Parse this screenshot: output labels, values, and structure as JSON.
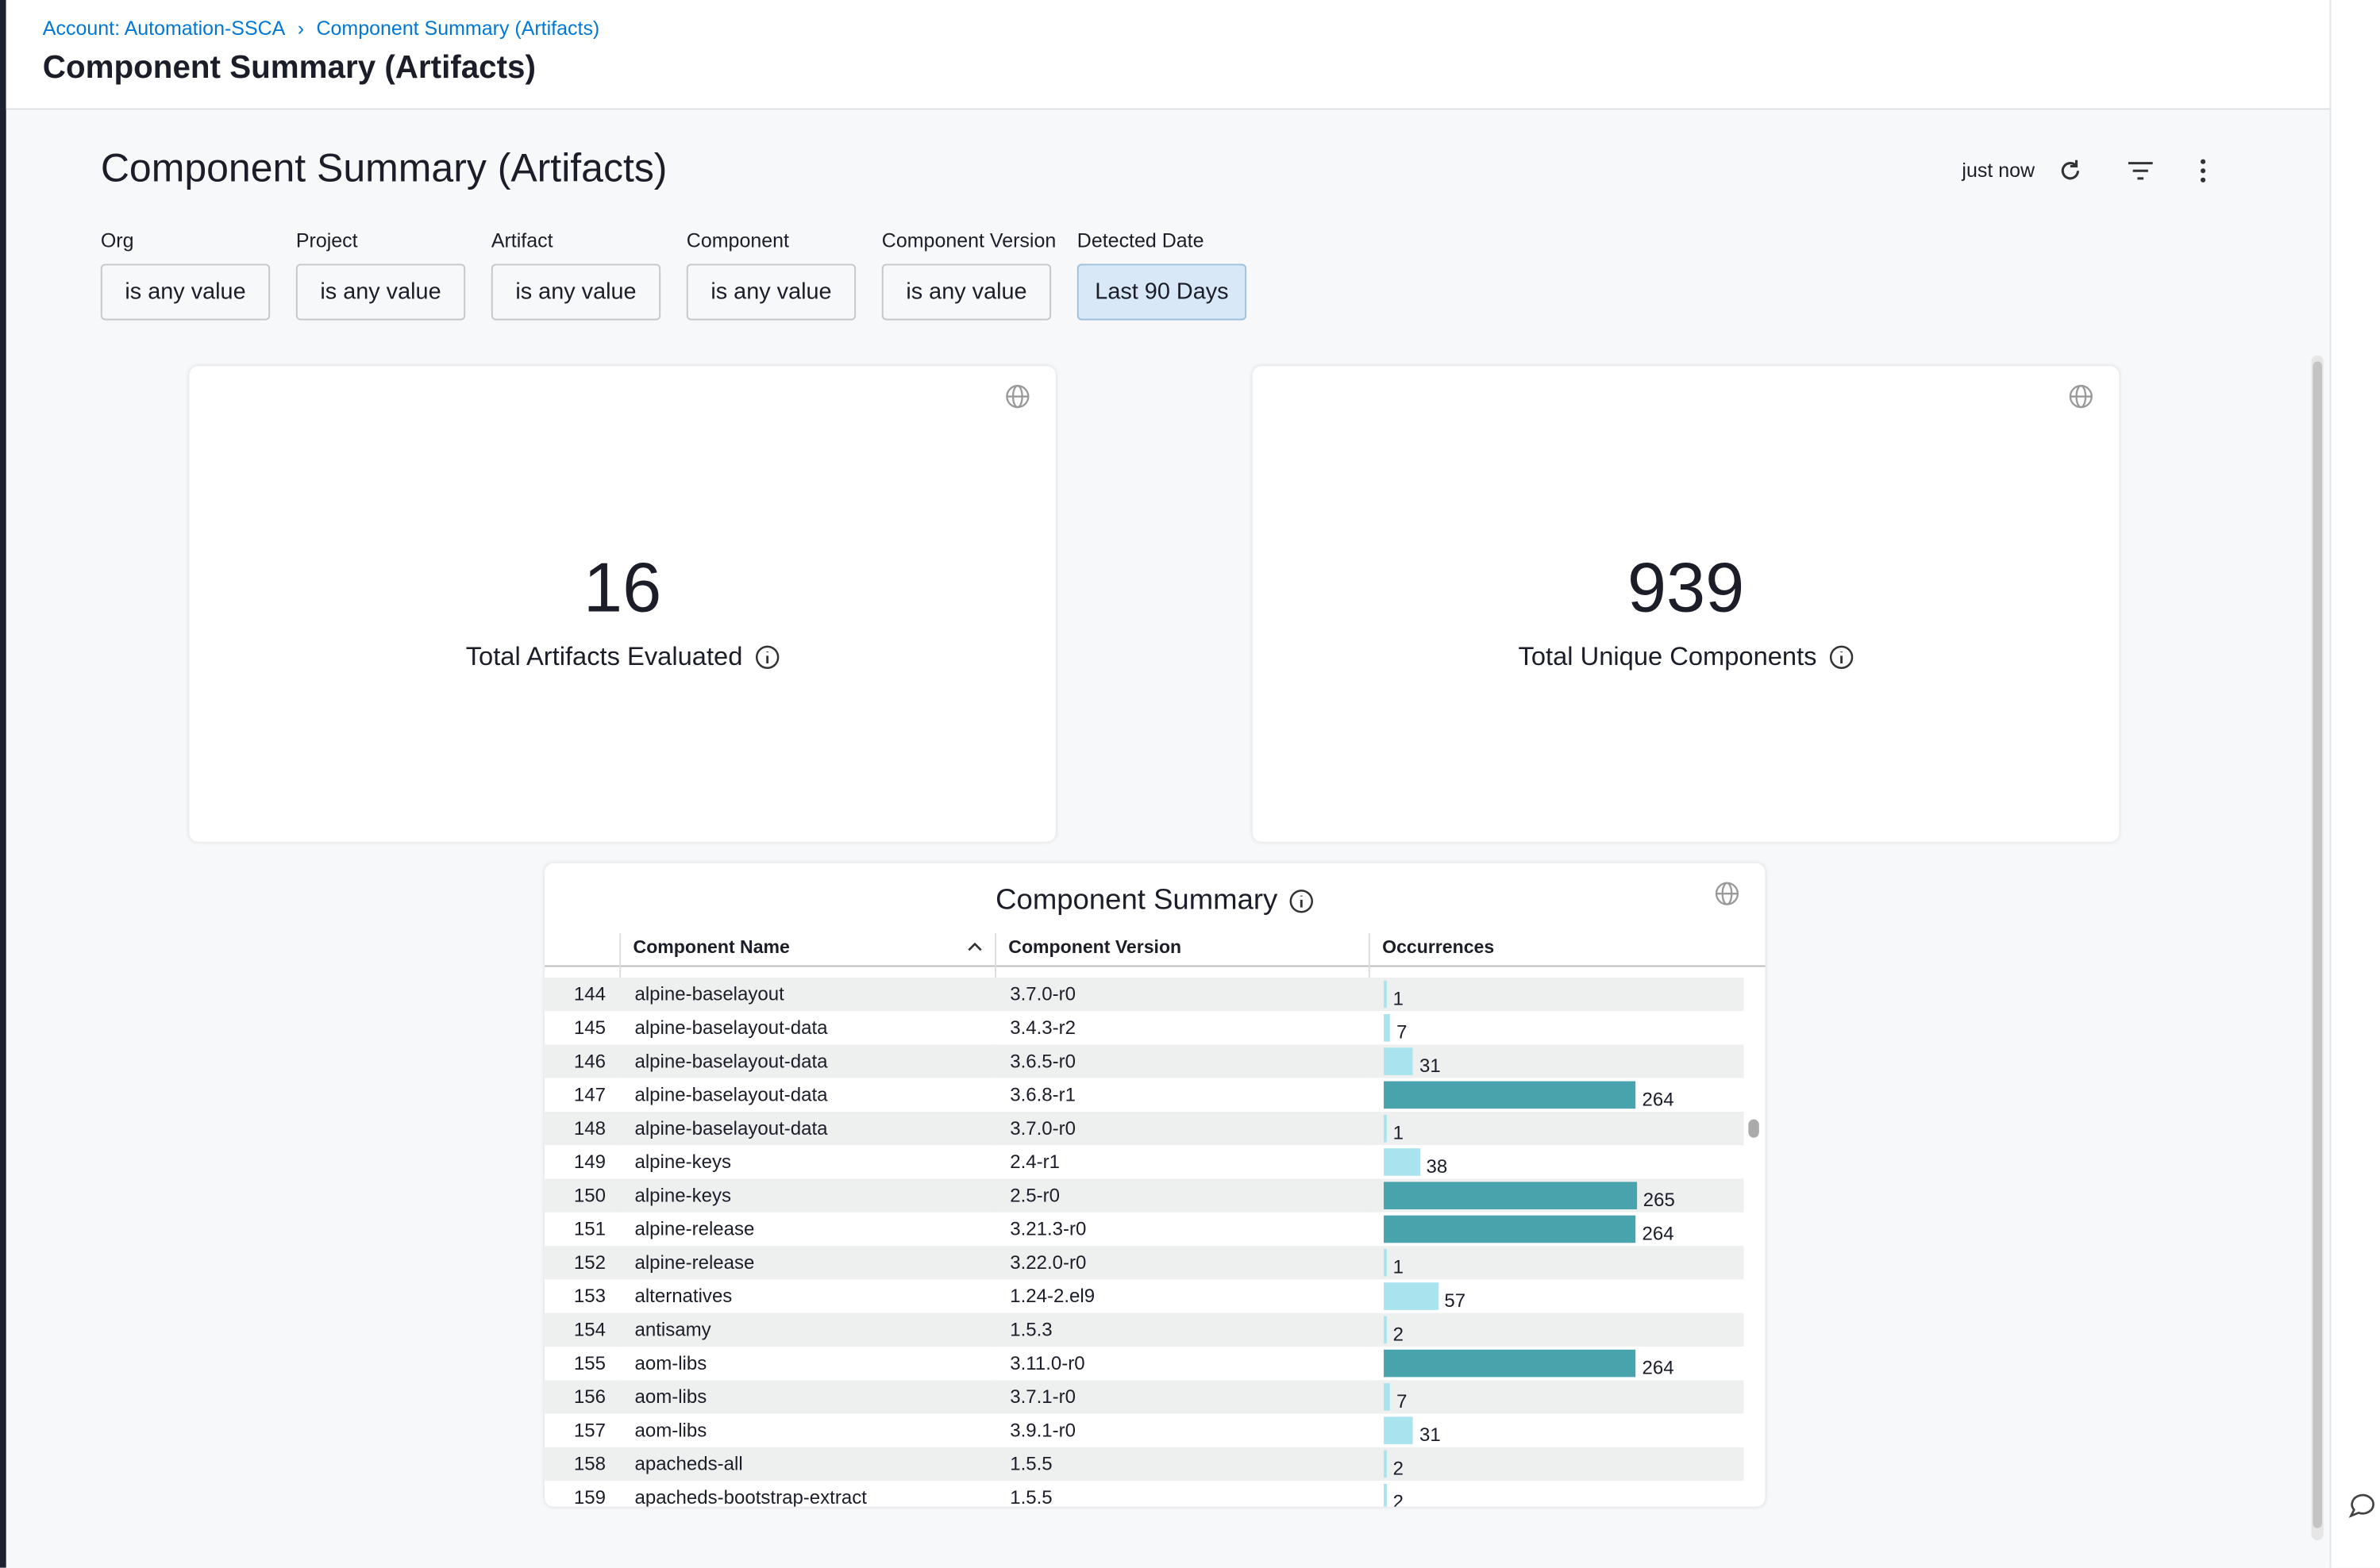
{
  "breadcrumb": {
    "account": "Account: Automation-SSCA",
    "current": "Component Summary (Artifacts)"
  },
  "header": {
    "title": "Component Summary (Artifacts)"
  },
  "dashboard": {
    "title": "Component Summary (Artifacts)",
    "refreshed": "just now",
    "filters": [
      {
        "label": "Org",
        "value": "is any value"
      },
      {
        "label": "Project",
        "value": "is any value"
      },
      {
        "label": "Artifact",
        "value": "is any value"
      },
      {
        "label": "Component",
        "value": "is any value"
      },
      {
        "label": "Component Version",
        "value": "is any value"
      },
      {
        "label": "Detected Date",
        "value": "Last 90 Days"
      }
    ],
    "tiles": [
      {
        "value": 16,
        "label": "Total Artifacts Evaluated"
      },
      {
        "value": 939,
        "label": "Total Unique Components"
      }
    ],
    "table": {
      "title": "Component Summary",
      "columns": [
        "Component Name",
        "Component Version",
        "Occurrences"
      ],
      "rows": [
        [
          144,
          "alpine-baselayout",
          "3.7.0-r0",
          1
        ],
        [
          145,
          "alpine-baselayout-data",
          "3.4.3-r2",
          7
        ],
        [
          146,
          "alpine-baselayout-data",
          "3.6.5-r0",
          31
        ],
        [
          147,
          "alpine-baselayout-data",
          "3.6.8-r1",
          264
        ],
        [
          148,
          "alpine-baselayout-data",
          "3.7.0-r0",
          1
        ],
        [
          149,
          "alpine-keys",
          "2.4-r1",
          38
        ],
        [
          150,
          "alpine-keys",
          "2.5-r0",
          265
        ],
        [
          151,
          "alpine-release",
          "3.21.3-r0",
          264
        ],
        [
          152,
          "alpine-release",
          "3.22.0-r0",
          1
        ],
        [
          153,
          "alternatives",
          "1.24-2.el9",
          57
        ],
        [
          154,
          "antisamy",
          "1.5.3",
          2
        ],
        [
          155,
          "aom-libs",
          "3.11.0-r0",
          264
        ],
        [
          156,
          "aom-libs",
          "3.7.1-r0",
          7
        ],
        [
          157,
          "aom-libs",
          "3.9.1-r0",
          31
        ],
        [
          158,
          "apacheds-all",
          "1.5.5",
          2
        ],
        [
          159,
          "apacheds-bootstrap-extract",
          "1.5.5",
          2
        ]
      ]
    }
  }
}
